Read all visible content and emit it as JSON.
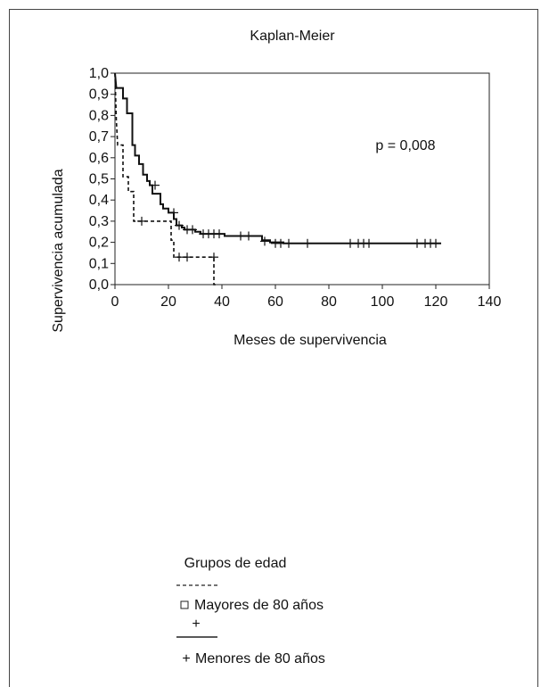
{
  "chart_data": {
    "type": "line",
    "subtype": "kaplan-meier",
    "title": "Kaplan-Meier",
    "xlabel": "Meses de supervivencia",
    "ylabel": "Supervivencia acumulada",
    "xlim": [
      0,
      140
    ],
    "ylim": [
      0,
      1.0
    ],
    "xticks": [
      0,
      20,
      40,
      60,
      80,
      100,
      120,
      140
    ],
    "yticks": [
      "0,0",
      "0,1",
      "0,2",
      "0,3",
      "0,4",
      "0,5",
      "0,6",
      "0,7",
      "0,8",
      "0,9",
      "1,0"
    ],
    "grid": false,
    "annotation": "p = 0,008",
    "legend": {
      "title": "Grupos de edad",
      "placement": "bottom",
      "items": [
        {
          "label": "Mayores de 80 años",
          "style": "dashed",
          "marker": "□"
        },
        {
          "label": "Menores de 80 años",
          "style": "solid",
          "marker": "+"
        }
      ]
    },
    "series": [
      {
        "name": "Mayores de 80 años",
        "style": "dashed",
        "step": [
          [
            0,
            1.0
          ],
          [
            0.5,
            0.78
          ],
          [
            1,
            0.66
          ],
          [
            3,
            0.66
          ],
          [
            3,
            0.51
          ],
          [
            5,
            0.51
          ],
          [
            5,
            0.44
          ],
          [
            7,
            0.44
          ],
          [
            7,
            0.3
          ],
          [
            21,
            0.3
          ],
          [
            21,
            0.21
          ],
          [
            22,
            0.21
          ],
          [
            22,
            0.13
          ],
          [
            37,
            0.13
          ],
          [
            37,
            0.0
          ],
          [
            38,
            0.0
          ]
        ],
        "censored": [
          [
            10,
            0.3
          ],
          [
            24,
            0.13
          ],
          [
            27,
            0.13
          ],
          [
            37,
            0.13
          ]
        ]
      },
      {
        "name": "Menores de 80 años",
        "style": "solid",
        "step": [
          [
            0,
            1.0
          ],
          [
            0.5,
            0.93
          ],
          [
            3,
            0.93
          ],
          [
            3,
            0.88
          ],
          [
            4.5,
            0.88
          ],
          [
            4.5,
            0.81
          ],
          [
            6.5,
            0.81
          ],
          [
            6.5,
            0.66
          ],
          [
            7.5,
            0.66
          ],
          [
            7.5,
            0.61
          ],
          [
            9,
            0.61
          ],
          [
            9,
            0.57
          ],
          [
            10.5,
            0.57
          ],
          [
            10.5,
            0.52
          ],
          [
            12,
            0.52
          ],
          [
            12,
            0.49
          ],
          [
            13,
            0.49
          ],
          [
            13,
            0.47
          ],
          [
            14,
            0.47
          ],
          [
            14,
            0.43
          ],
          [
            17,
            0.43
          ],
          [
            17,
            0.38
          ],
          [
            18,
            0.38
          ],
          [
            18,
            0.36
          ],
          [
            20,
            0.36
          ],
          [
            20,
            0.34
          ],
          [
            22,
            0.34
          ],
          [
            22,
            0.31
          ],
          [
            23,
            0.31
          ],
          [
            23,
            0.28
          ],
          [
            25,
            0.28
          ],
          [
            25,
            0.27
          ],
          [
            26,
            0.27
          ],
          [
            26,
            0.26
          ],
          [
            30,
            0.26
          ],
          [
            30,
            0.25
          ],
          [
            32,
            0.25
          ],
          [
            32,
            0.24
          ],
          [
            41,
            0.24
          ],
          [
            41,
            0.23
          ],
          [
            55,
            0.23
          ],
          [
            55,
            0.21
          ],
          [
            58,
            0.21
          ],
          [
            58,
            0.2
          ],
          [
            63,
            0.2
          ],
          [
            63,
            0.195
          ],
          [
            122,
            0.195
          ]
        ],
        "censored": [
          [
            15,
            0.47
          ],
          [
            22,
            0.34
          ],
          [
            24,
            0.28
          ],
          [
            27,
            0.26
          ],
          [
            29,
            0.26
          ],
          [
            33,
            0.24
          ],
          [
            35,
            0.24
          ],
          [
            37,
            0.24
          ],
          [
            39,
            0.24
          ],
          [
            47,
            0.23
          ],
          [
            50,
            0.23
          ],
          [
            56,
            0.205
          ],
          [
            60,
            0.195
          ],
          [
            62,
            0.195
          ],
          [
            65,
            0.195
          ],
          [
            72,
            0.195
          ],
          [
            88,
            0.195
          ],
          [
            91,
            0.195
          ],
          [
            93,
            0.195
          ],
          [
            95,
            0.195
          ],
          [
            113,
            0.195
          ],
          [
            116,
            0.195
          ],
          [
            118,
            0.195
          ],
          [
            120,
            0.195
          ]
        ]
      }
    ]
  }
}
